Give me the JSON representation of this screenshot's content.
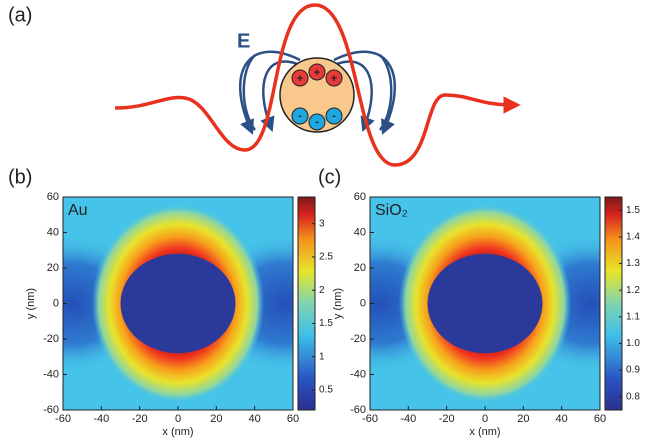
{
  "panels": [
    "(a)",
    "(b)",
    "(c)"
  ],
  "diagram": {
    "field_label": "E",
    "positive_sign": "+",
    "negative_sign": "-"
  },
  "chart_data": [
    {
      "type": "heatmap",
      "annotation": "Au",
      "xlabel": "x (nm)",
      "ylabel": "y (nm)",
      "xlim": [
        -60,
        60
      ],
      "ylim": [
        -60,
        60
      ],
      "xticks": [
        -60,
        -40,
        -20,
        0,
        20,
        40,
        60
      ],
      "yticks": [
        -60,
        -40,
        -20,
        0,
        20,
        40,
        60
      ],
      "clim": [
        0.2,
        3.4
      ],
      "cticks": [
        0.5,
        1,
        1.5,
        2,
        2.5,
        3
      ]
    },
    {
      "type": "heatmap",
      "annotation": "SiO₂",
      "xlabel": "x (nm)",
      "ylabel": "y (nm)",
      "xlim": [
        -60,
        60
      ],
      "ylim": [
        -60,
        60
      ],
      "xticks": [
        -60,
        -40,
        -20,
        0,
        20,
        40,
        60
      ],
      "yticks": [
        -60,
        -40,
        -20,
        0,
        20,
        40,
        60
      ],
      "clim": [
        0.75,
        1.55
      ],
      "cticks": [
        0.8,
        0.9,
        {
          "value": 1,
          "label": "1.0"
        },
        1.1,
        1.2,
        1.3,
        1.4,
        1.5
      ]
    }
  ]
}
